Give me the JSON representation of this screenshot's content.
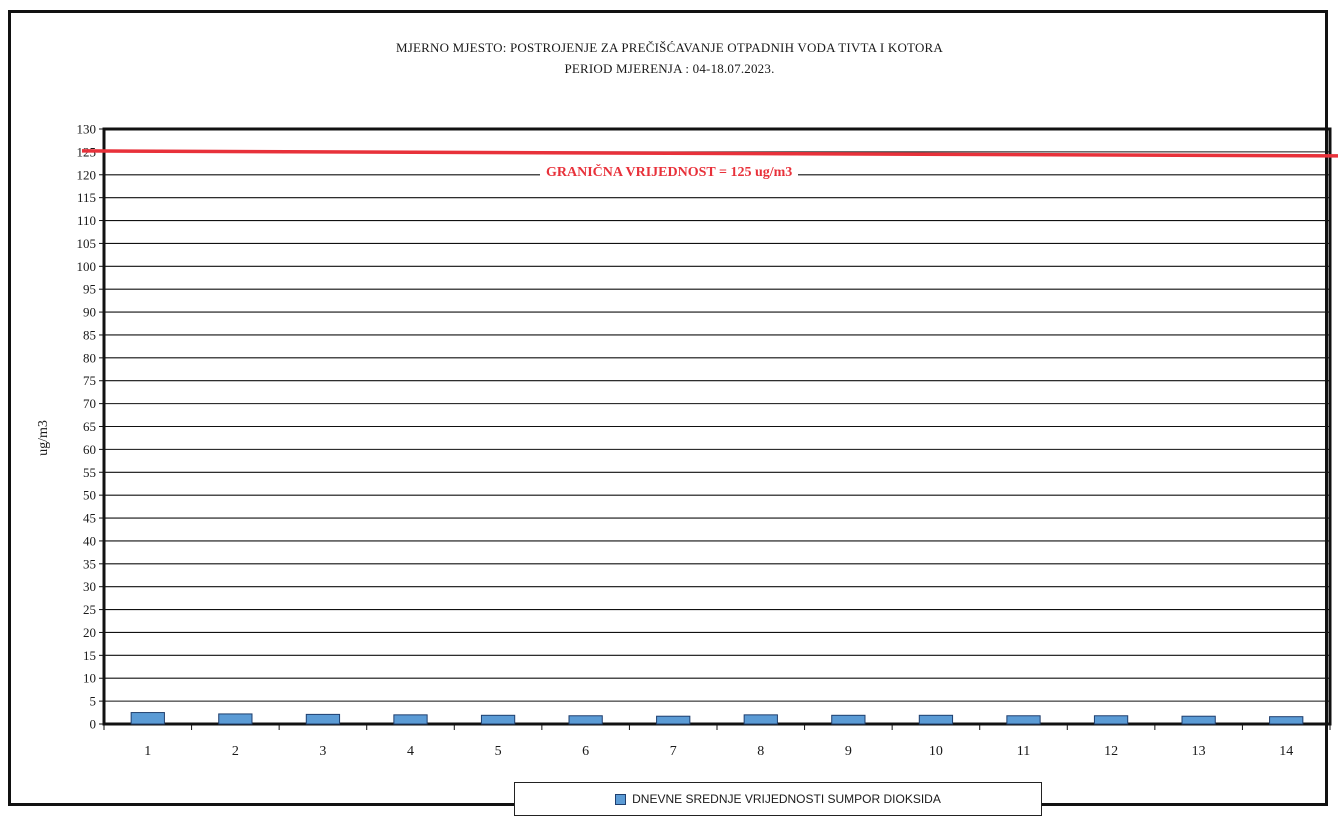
{
  "chart_data": {
    "type": "bar",
    "title_line1": "MJERNO MJESTO: POSTROJENJE ZA PREČIŠĆAVANJE OTPADNIH VODA TIVTA I KOTORA",
    "title_line2": "PERIOD MJERENJA : 04-18.07.2023.",
    "ylabel": "ug/m3",
    "xlabel": "",
    "ylim": [
      0,
      130
    ],
    "ytick_step": 5,
    "grid": true,
    "categories": [
      "1",
      "2",
      "3",
      "4",
      "5",
      "6",
      "7",
      "8",
      "9",
      "10",
      "11",
      "12",
      "13",
      "14"
    ],
    "series": [
      {
        "name": "DNEVNE SREDNJE VRIJEDNOSTI SUMPOR DIOKSIDA",
        "values": [
          2.5,
          2.2,
          2.1,
          2.0,
          1.9,
          1.8,
          1.7,
          2.0,
          1.9,
          1.9,
          1.8,
          1.8,
          1.7,
          1.6
        ],
        "color": "#5b9bd5"
      }
    ],
    "limit_line": {
      "value": 125,
      "label": "GRANIČNA VRIJEDNOST = 125 ug/m3",
      "color": "#e8313a"
    },
    "legend_position": "bottom-center"
  }
}
